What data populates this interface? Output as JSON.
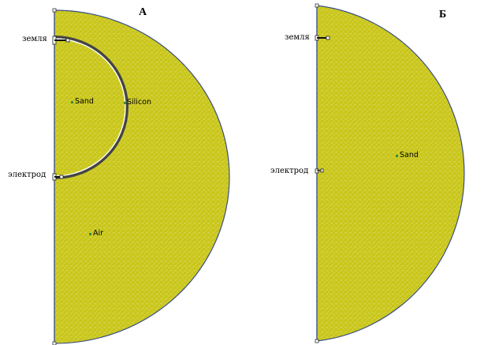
{
  "panel_a": {
    "title": "А",
    "left_labels": {
      "ground": "земля",
      "electrode": "электрод"
    },
    "materials": {
      "inner": "Sand",
      "shell": "Silicon",
      "outer": "Air"
    }
  },
  "panel_b": {
    "title": "Б",
    "left_labels": {
      "ground": "земля",
      "electrode": "электрод"
    },
    "materials": {
      "inner": "Sand"
    }
  },
  "colors": {
    "fill": "#c9c61a",
    "outline": "#3a4f86",
    "marker": "#2f8f3a",
    "speckle": "#ffffff"
  }
}
